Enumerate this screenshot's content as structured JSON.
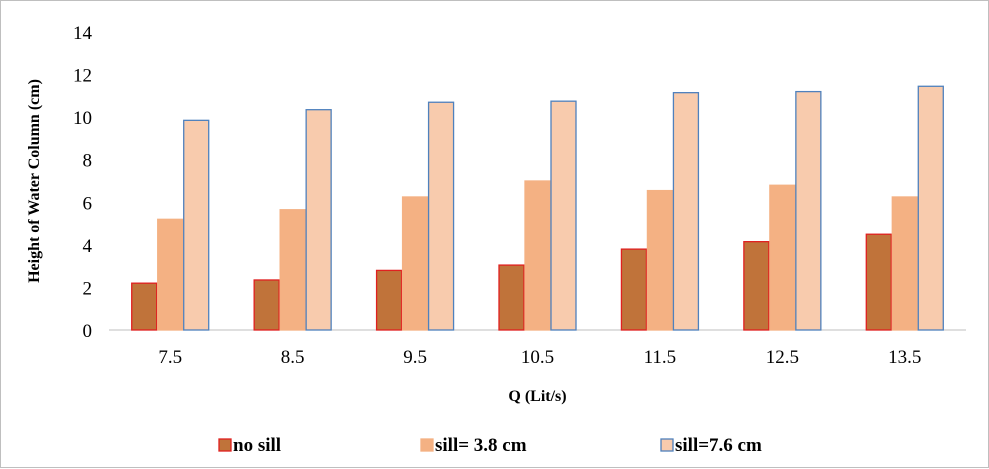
{
  "chart_data": {
    "type": "bar",
    "categories": [
      "7.5",
      "8.5",
      "9.5",
      "10.5",
      "11.5",
      "12.5",
      "13.5"
    ],
    "series": [
      {
        "name": "no sill",
        "values": [
          2.2,
          2.35,
          2.8,
          3.05,
          3.8,
          4.15,
          4.5
        ],
        "fill": "#c0733a",
        "stroke": "#e02020"
      },
      {
        "name": "sill= 3.8 cm",
        "values": [
          5.2,
          5.65,
          6.25,
          7.0,
          6.55,
          6.8,
          6.25
        ],
        "fill": "#f4b183",
        "stroke": "#f4b183"
      },
      {
        "name": "sill=7.6 cm",
        "values": [
          9.85,
          10.35,
          10.7,
          10.75,
          11.15,
          11.2,
          11.45
        ],
        "fill": "#f8cbad",
        "stroke": "#4f81bd"
      }
    ],
    "ylim": [
      0,
      14
    ],
    "yticks": [
      "0",
      "2",
      "4",
      "6",
      "8",
      "10",
      "12",
      "14"
    ],
    "xlabel": "Q (Lit/s)",
    "ylabel": "Height of Water Column (cm)",
    "grid": false,
    "legend": "bottom"
  }
}
